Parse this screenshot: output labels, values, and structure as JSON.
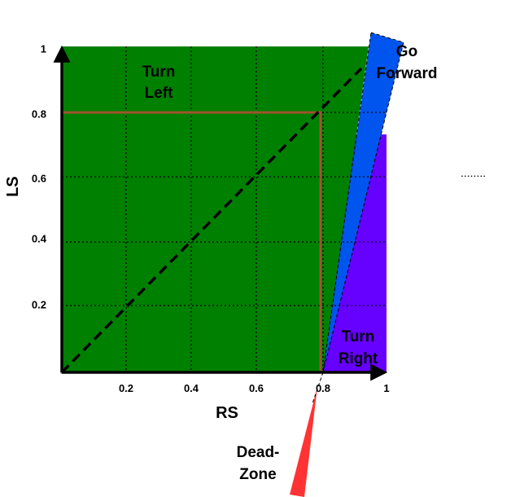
{
  "diagram": {
    "axes": {
      "x_label": "RS",
      "y_label": "LS",
      "x_ticks": [
        "0.2",
        "0.4",
        "0.6",
        "0.8",
        "1"
      ],
      "y_ticks": [
        "0.2",
        "0.4",
        "0.6",
        "0.8",
        "1"
      ]
    },
    "regions": {
      "turn_left": [
        "Turn",
        "Left"
      ],
      "go_forward": [
        "Go",
        "Forward"
      ],
      "turn_right": [
        "Turn",
        "Right"
      ],
      "dead_zone": [
        "Dead-",
        "Zone"
      ]
    },
    "side_dots": "........",
    "colors": {
      "turn_left": "#008000",
      "turn_right": "#6600ff",
      "go_forward": "#0055ee",
      "dead_zone": "#ff3333",
      "box": "#a0522d"
    }
  }
}
